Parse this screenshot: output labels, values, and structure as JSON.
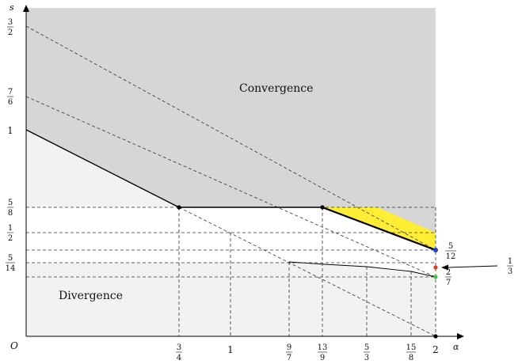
{
  "axes": {
    "x_name": "α",
    "y_name": "s",
    "origin": "O"
  },
  "regions": {
    "convergence": "Convergence",
    "divergence": "Divergence"
  },
  "x_ticks": {
    "three_quarters": {
      "num": "3",
      "den": "4"
    },
    "one": "1",
    "nine_sevenths": {
      "num": "9",
      "den": "7"
    },
    "thirteen_ninths": {
      "num": "13",
      "den": "9"
    },
    "five_thirds": {
      "num": "5",
      "den": "3"
    },
    "fifteen_eighths": {
      "num": "15",
      "den": "8"
    },
    "two": "2"
  },
  "y_ticks": {
    "three_halves": {
      "num": "3",
      "den": "2"
    },
    "seven_sixths": {
      "num": "7",
      "den": "6"
    },
    "one": "1",
    "five_eighths": {
      "num": "5",
      "den": "8"
    },
    "one_half": {
      "num": "1",
      "den": "2"
    },
    "five_fourteenths": {
      "num": "5",
      "den": "14"
    }
  },
  "right_labels": {
    "five_twelfths": {
      "num": "5",
      "den": "12"
    },
    "one_third": {
      "num": "1",
      "den": "3"
    },
    "two_sevenths": {
      "num": "2",
      "den": "7"
    }
  },
  "colors": {
    "convergence_fill": "#d6d6d6",
    "divergence_fill": "#f2f2f2",
    "highlight": "#ffee33",
    "point_blue": "#1f3fd6",
    "point_red": "#e03a1e",
    "point_green": "#3cc43c"
  }
}
